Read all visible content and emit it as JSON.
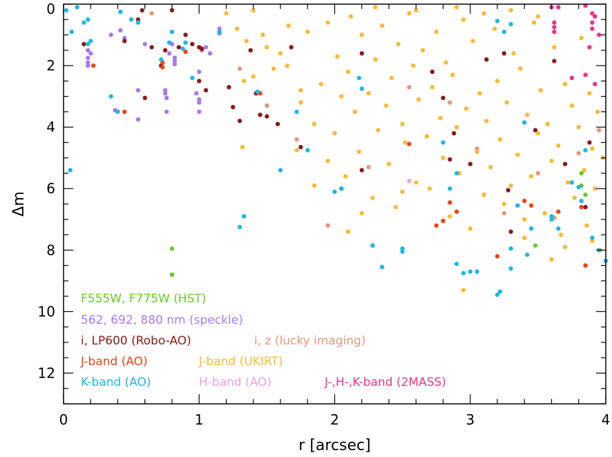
{
  "chart_data": {
    "type": "scatter",
    "title": "",
    "xlabel": "r [arcsec]",
    "ylabel": "Δm",
    "xlim": [
      0,
      4
    ],
    "ylim": [
      13,
      0
    ],
    "y_inverted": true,
    "grid": false,
    "legend_placement": "bottom-left, inside plot",
    "x_ticks": [
      0,
      1,
      2,
      3,
      4
    ],
    "y_ticks": [
      0,
      2,
      4,
      6,
      8,
      10,
      12
    ],
    "series": [
      {
        "name": "F555W, F775W (HST)",
        "color": "#66cc22",
        "points": [
          [
            0.8,
            7.95
          ],
          [
            0.8,
            8.8
          ],
          [
            3.48,
            7.85
          ],
          [
            3.82,
            5.5
          ],
          [
            3.82,
            5.9
          ],
          [
            3.85,
            6.2
          ]
        ]
      },
      {
        "name": "562, 692, 880 nm (speckle)",
        "color": "#a779f0",
        "points": [
          [
            0.18,
            1.5
          ],
          [
            0.18,
            1.75
          ],
          [
            0.18,
            1.9
          ],
          [
            0.18,
            2.0
          ],
          [
            0.2,
            1.6
          ],
          [
            0.35,
            1.0
          ],
          [
            0.42,
            0.85
          ],
          [
            0.45,
            1.1
          ],
          [
            0.55,
            2.8
          ],
          [
            0.55,
            3.75
          ],
          [
            0.6,
            1.3
          ],
          [
            0.75,
            2.8
          ],
          [
            0.75,
            2.9
          ],
          [
            0.76,
            3.05
          ],
          [
            0.76,
            3.5
          ],
          [
            0.78,
            1.6
          ],
          [
            0.8,
            1.3
          ],
          [
            0.82,
            1.75
          ],
          [
            0.82,
            1.85
          ],
          [
            0.82,
            1.95
          ],
          [
            0.98,
            2.9
          ],
          [
            1.0,
            3.1
          ],
          [
            1.0,
            3.2
          ],
          [
            1.0,
            3.5
          ],
          [
            1.02,
            1.5
          ],
          [
            1.05,
            1.4
          ],
          [
            1.08,
            1.6
          ],
          [
            1.15,
            0.8
          ],
          [
            1.15,
            0.95
          ],
          [
            1.0,
            2.2
          ],
          [
            0.38,
            3.45
          ]
        ]
      },
      {
        "name": "i, LP600 (Robo-AO)",
        "color": "#8b1a1a",
        "points": [
          [
            0.15,
            1.3
          ],
          [
            0.45,
            1.2
          ],
          [
            0.55,
            0.5
          ],
          [
            0.58,
            0.2
          ],
          [
            0.6,
            3.05
          ],
          [
            0.65,
            1.4
          ],
          [
            0.72,
            2.0
          ],
          [
            0.75,
            1.5
          ],
          [
            0.8,
            0.2
          ],
          [
            0.85,
            1.4
          ],
          [
            0.9,
            1.0
          ],
          [
            0.95,
            1.3
          ],
          [
            1.0,
            1.4
          ],
          [
            1.0,
            2.5
          ],
          [
            1.02,
            1.45
          ],
          [
            1.05,
            2.8
          ],
          [
            1.22,
            2.7
          ],
          [
            1.25,
            3.35
          ],
          [
            1.3,
            3.8
          ],
          [
            1.38,
            1.5
          ],
          [
            1.42,
            2.9
          ],
          [
            1.45,
            3.6
          ],
          [
            1.5,
            3.65
          ],
          [
            1.58,
            3.9
          ],
          [
            1.68,
            1.4
          ],
          [
            1.75,
            4.65
          ],
          [
            2.2,
            5.4
          ],
          [
            2.2,
            1.6
          ],
          [
            2.72,
            2.2
          ],
          [
            2.8,
            3.05
          ],
          [
            2.85,
            5.05
          ],
          [
            2.88,
            4.2
          ],
          [
            3.0,
            5.2
          ],
          [
            3.12,
            1.8
          ],
          [
            3.25,
            1.6
          ],
          [
            3.28,
            6.05
          ],
          [
            3.3,
            7.4
          ],
          [
            3.48,
            4.1
          ],
          [
            3.62,
            1.85
          ],
          [
            3.7,
            5.2
          ],
          [
            3.85,
            6.6
          ],
          [
            3.88,
            4.5
          ]
        ]
      },
      {
        "name": "i, z (lucky imaging)",
        "color": "#e8957a",
        "points": [
          [
            0.65,
            0.3
          ],
          [
            1.3,
            2.1
          ],
          [
            1.5,
            3.3
          ],
          [
            1.72,
            4.4
          ],
          [
            1.95,
            7.2
          ],
          [
            2.25,
            5.3
          ],
          [
            2.55,
            2.7
          ],
          [
            2.85,
            3.2
          ],
          [
            3.05,
            4.7
          ],
          [
            3.25,
            6.8
          ],
          [
            3.5,
            5.5
          ],
          [
            3.62,
            6.95
          ],
          [
            3.8,
            4.85
          ],
          [
            3.95,
            4.1
          ]
        ]
      },
      {
        "name": "J-band (AO)",
        "color": "#ee4411",
        "points": [
          [
            0.22,
            2.0
          ],
          [
            0.45,
            3.5
          ],
          [
            0.73,
            1.9
          ],
          [
            0.73,
            2.05
          ],
          [
            0.9,
            1.55
          ],
          [
            1.45,
            2.9
          ],
          [
            2.05,
            6.0
          ],
          [
            2.55,
            4.55
          ],
          [
            2.75,
            7.2
          ],
          [
            2.8,
            7.05
          ],
          [
            2.85,
            6.45
          ],
          [
            2.9,
            6.75
          ],
          [
            3.2,
            8.2
          ],
          [
            3.4,
            6.4
          ],
          [
            3.45,
            6.55
          ],
          [
            3.65,
            6.75
          ],
          [
            3.82,
            6.6
          ],
          [
            3.85,
            8.5
          ]
        ]
      },
      {
        "name": "J-band (UKIRT)",
        "color": "#fbb934",
        "points": [
          [
            1.2,
            0.3
          ],
          [
            1.28,
            0.8
          ],
          [
            1.33,
            2.5
          ],
          [
            1.35,
            1.2
          ],
          [
            1.32,
            4.65
          ],
          [
            1.4,
            2.35
          ],
          [
            1.47,
            1.0
          ],
          [
            1.55,
            2.1
          ],
          [
            1.6,
            1.6
          ],
          [
            1.66,
            0.7
          ],
          [
            1.72,
            4.75
          ],
          [
            1.75,
            2.8
          ],
          [
            1.8,
            0.9
          ],
          [
            1.85,
            3.9
          ],
          [
            1.9,
            2.6
          ],
          [
            1.95,
            0.6
          ],
          [
            2.0,
            4.2
          ],
          [
            2.02,
            1.7
          ],
          [
            2.05,
            3.0
          ],
          [
            2.08,
            5.6
          ],
          [
            2.1,
            2.2
          ],
          [
            2.12,
            0.4
          ],
          [
            2.15,
            3.5
          ],
          [
            2.18,
            4.8
          ],
          [
            2.2,
            1.0
          ],
          [
            2.25,
            2.9
          ],
          [
            2.28,
            6.3
          ],
          [
            2.3,
            1.8
          ],
          [
            2.32,
            4.1
          ],
          [
            2.35,
            0.7
          ],
          [
            2.38,
            3.3
          ],
          [
            2.4,
            5.2
          ],
          [
            2.42,
            2.4
          ],
          [
            2.45,
            6.6
          ],
          [
            2.47,
            1.3
          ],
          [
            2.5,
            3.9
          ],
          [
            2.52,
            4.5
          ],
          [
            2.55,
            0.3
          ],
          [
            2.58,
            2.0
          ],
          [
            2.6,
            5.8
          ],
          [
            2.62,
            3.1
          ],
          [
            2.65,
            1.5
          ],
          [
            2.68,
            4.3
          ],
          [
            2.7,
            6.0
          ],
          [
            2.72,
            2.7
          ],
          [
            2.75,
            0.9
          ],
          [
            2.78,
            3.7
          ],
          [
            2.8,
            5.0
          ],
          [
            2.82,
            1.9
          ],
          [
            2.85,
            6.9
          ],
          [
            2.87,
            2.3
          ],
          [
            2.9,
            4.0
          ],
          [
            2.92,
            5.5
          ],
          [
            2.95,
            0.5
          ],
          [
            2.97,
            3.4
          ],
          [
            3.0,
            7.3
          ],
          [
            3.02,
            1.2
          ],
          [
            3.05,
            4.8
          ],
          [
            3.07,
            2.9
          ],
          [
            3.1,
            6.2
          ],
          [
            3.12,
            3.8
          ],
          [
            3.15,
            5.3
          ],
          [
            3.18,
            0.8
          ],
          [
            3.2,
            2.5
          ],
          [
            3.22,
            4.4
          ],
          [
            3.25,
            6.5
          ],
          [
            3.27,
            3.2
          ],
          [
            3.3,
            5.9
          ],
          [
            3.32,
            1.6
          ],
          [
            3.35,
            4.9
          ],
          [
            3.37,
            2.1
          ],
          [
            3.4,
            7.0
          ],
          [
            3.42,
            3.6
          ],
          [
            3.45,
            5.6
          ],
          [
            3.47,
            0.6
          ],
          [
            3.5,
            4.2
          ],
          [
            3.52,
            2.8
          ],
          [
            3.55,
            6.8
          ],
          [
            3.57,
            3.9
          ],
          [
            3.6,
            5.1
          ],
          [
            3.62,
            1.4
          ],
          [
            3.65,
            4.6
          ],
          [
            3.67,
            7.5
          ],
          [
            3.7,
            2.6
          ],
          [
            3.72,
            5.8
          ],
          [
            3.75,
            3.3
          ],
          [
            3.77,
            6.3
          ],
          [
            3.8,
            4.0
          ],
          [
            3.82,
            1.1
          ],
          [
            3.84,
            5.4
          ],
          [
            3.86,
            7.2
          ],
          [
            3.88,
            2.9
          ],
          [
            3.9,
            4.7
          ],
          [
            3.92,
            6.0
          ],
          [
            3.94,
            3.5
          ],
          [
            3.96,
            8.0
          ],
          [
            3.98,
            5.0
          ],
          [
            3.6,
            8.3
          ],
          [
            3.7,
            7.9
          ],
          [
            3.4,
            7.6
          ],
          [
            3.9,
            7.7
          ],
          [
            2.95,
            9.3
          ],
          [
            2.5,
            6.1
          ],
          [
            2.2,
            6.8
          ],
          [
            2.1,
            7.4
          ],
          [
            1.95,
            5.1
          ],
          [
            1.85,
            5.9
          ],
          [
            1.75,
            3.2
          ],
          [
            1.65,
            2.0
          ],
          [
            1.5,
            1.4
          ],
          [
            1.4,
            0.2
          ],
          [
            2.3,
            0.1
          ],
          [
            2.6,
            0.2
          ],
          [
            2.9,
            0.1
          ],
          [
            3.1,
            0.3
          ],
          [
            3.3,
            0.2
          ],
          [
            3.5,
            0.4
          ]
        ]
      },
      {
        "name": "H-band (AO)",
        "color": "#f0a0e0",
        "points": [
          [
            0.8,
            0.9
          ],
          [
            2.55,
            5.75
          ]
        ]
      },
      {
        "name": "J-,H-,K-band (2MASS)",
        "color": "#ee3385",
        "points": [
          [
            3.6,
            0.1
          ],
          [
            3.62,
            0.6
          ],
          [
            3.62,
            0.75
          ],
          [
            3.62,
            0.9
          ],
          [
            3.65,
            0.1
          ],
          [
            3.85,
            0.05
          ],
          [
            3.9,
            0.3
          ],
          [
            3.9,
            0.6
          ],
          [
            3.9,
            0.8
          ],
          [
            3.92,
            0.4
          ],
          [
            3.95,
            1.0
          ],
          [
            3.88,
            1.4
          ],
          [
            3.85,
            2.3
          ],
          [
            3.92,
            2.6
          ],
          [
            3.75,
            2.4
          ]
        ]
      },
      {
        "name": "K-band (AO)",
        "color": "#1ab8e8",
        "points": [
          [
            0.02,
            0.2
          ],
          [
            0.05,
            5.4
          ],
          [
            0.06,
            0.9
          ],
          [
            0.1,
            0.1
          ],
          [
            0.15,
            0.6
          ],
          [
            0.18,
            0.5
          ],
          [
            0.18,
            1.3
          ],
          [
            0.2,
            1.2
          ],
          [
            0.35,
            3.0
          ],
          [
            0.4,
            3.5
          ],
          [
            0.42,
            0.25
          ],
          [
            0.5,
            0.5
          ],
          [
            0.55,
            0.6
          ],
          [
            0.72,
            1.8
          ],
          [
            0.78,
            1.25
          ],
          [
            0.8,
            0.9
          ],
          [
            0.88,
            1.45
          ],
          [
            0.9,
            1.25
          ],
          [
            0.95,
            2.4
          ],
          [
            1.15,
            0.9
          ],
          [
            1.3,
            7.25
          ],
          [
            1.33,
            6.9
          ],
          [
            1.43,
            2.85
          ],
          [
            1.6,
            5.4
          ],
          [
            1.72,
            3.5
          ],
          [
            1.8,
            4.75
          ],
          [
            2.0,
            6.1
          ],
          [
            2.05,
            6.0
          ],
          [
            2.18,
            2.4
          ],
          [
            2.2,
            2.75
          ],
          [
            2.28,
            7.85
          ],
          [
            2.35,
            8.55
          ],
          [
            2.5,
            7.95
          ],
          [
            2.5,
            8.05
          ],
          [
            2.8,
            4.5
          ],
          [
            2.85,
            6.0
          ],
          [
            2.9,
            5.5
          ],
          [
            2.9,
            8.45
          ],
          [
            2.95,
            8.75
          ],
          [
            3.0,
            8.7
          ],
          [
            3.05,
            8.7
          ],
          [
            3.2,
            9.45
          ],
          [
            3.22,
            9.35
          ],
          [
            3.2,
            0.55
          ],
          [
            3.25,
            0.9
          ],
          [
            3.3,
            0.65
          ],
          [
            3.3,
            8.6
          ],
          [
            3.35,
            6.55
          ],
          [
            3.4,
            3.85
          ],
          [
            3.42,
            8.15
          ],
          [
            3.45,
            7.3
          ],
          [
            3.6,
            7.0
          ],
          [
            3.65,
            7.3
          ],
          [
            3.75,
            5.8
          ],
          [
            3.8,
            5.95
          ],
          [
            3.82,
            6.4
          ],
          [
            3.85,
            4.75
          ],
          [
            3.9,
            7.6
          ],
          [
            3.95,
            8.0
          ],
          [
            4.0,
            8.35
          ],
          [
            3.3,
            7.95
          ],
          [
            3.6,
            6.9
          ]
        ]
      }
    ]
  }
}
